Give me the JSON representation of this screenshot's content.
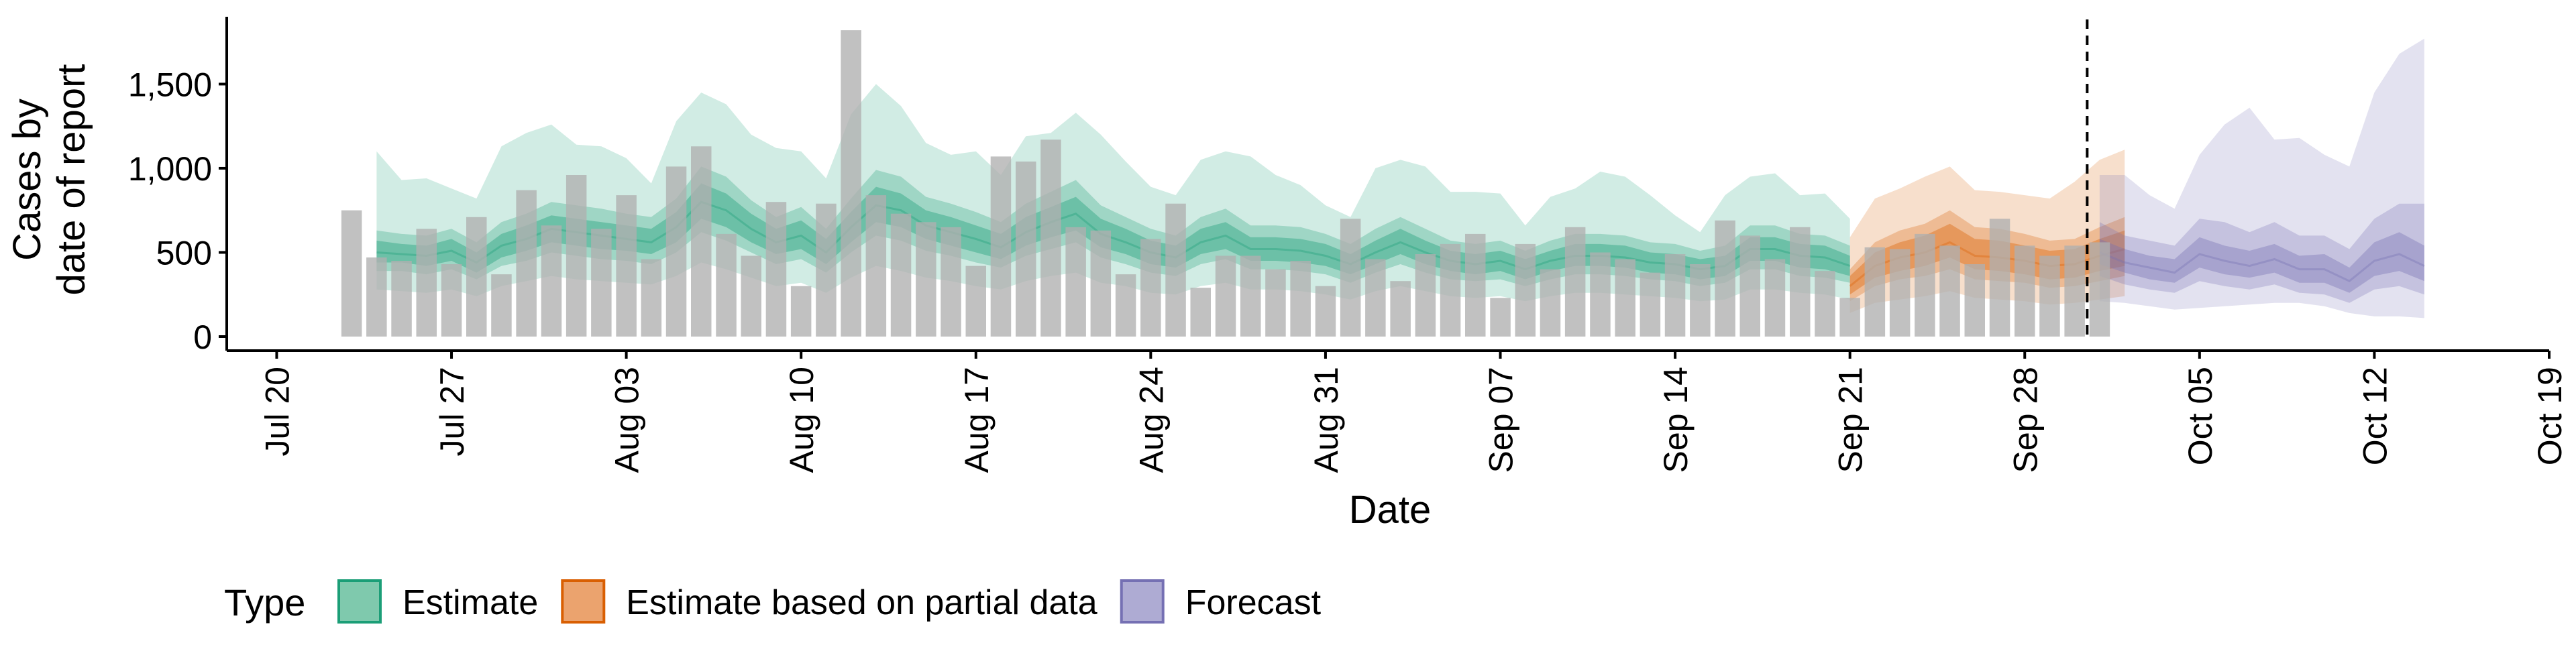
{
  "chart_data": {
    "type": "bar",
    "xlabel": "Date",
    "ylabel": [
      "Cases by",
      "date of report"
    ],
    "ylim": [
      0,
      1900
    ],
    "y_ticks": [
      0,
      500,
      1000,
      1500
    ],
    "y_tick_labels": [
      "0",
      "500",
      "1,000",
      "1,500"
    ],
    "x_range": [
      "2020-07-18",
      "2020-10-19"
    ],
    "x_ticks": [
      "2020-07-20",
      "2020-07-27",
      "2020-08-03",
      "2020-08-10",
      "2020-08-17",
      "2020-08-24",
      "2020-08-31",
      "2020-09-07",
      "2020-09-14",
      "2020-09-21",
      "2020-09-28",
      "2020-10-05",
      "2020-10-12",
      "2020-10-19"
    ],
    "x_tick_labels": [
      "Jul 20",
      "Jul 27",
      "Aug 03",
      "Aug 10",
      "Aug 17",
      "Aug 24",
      "Aug 31",
      "Sep 07",
      "Sep 14",
      "Sep 21",
      "Sep 28",
      "Oct 05",
      "Oct 12",
      "Oct 19"
    ],
    "grid": false,
    "legend": {
      "title": "Type",
      "position": "bottom",
      "entries": [
        {
          "label": "Estimate",
          "fill": "#7fc9ad",
          "stroke": "#1b9e77"
        },
        {
          "label": "Estimate based on partial data",
          "fill": "#eba36e",
          "stroke": "#d95f02"
        },
        {
          "label": "Forecast",
          "fill": "#aeabd3",
          "stroke": "#7570b3"
        }
      ]
    },
    "reported_cases": {
      "color": "#b0b0b0",
      "start_date": "2020-07-23",
      "values": [
        750,
        470,
        450,
        640,
        430,
        710,
        370,
        870,
        660,
        960,
        640,
        840,
        460,
        1010,
        1130,
        610,
        480,
        800,
        300,
        790,
        1820,
        840,
        730,
        680,
        650,
        420,
        1070,
        1040,
        1170,
        650,
        630,
        370,
        580,
        790,
        290,
        480,
        480,
        400,
        450,
        300,
        700,
        460,
        330,
        490,
        550,
        610,
        230,
        550,
        400,
        650,
        500,
        460,
        380,
        490,
        430,
        690,
        600,
        460,
        650,
        390,
        230,
        530,
        520,
        610,
        540,
        430,
        700,
        540,
        480,
        540,
        560
      ]
    },
    "forecast_date": "2020-09-30",
    "series": [
      {
        "name": "Estimate",
        "start_date": "2020-07-24",
        "median": [
          500,
          490,
          480,
          510,
          440,
          540,
          580,
          640,
          620,
          600,
          580,
          560,
          650,
          800,
          750,
          640,
          560,
          600,
          500,
          650,
          780,
          750,
          660,
          620,
          580,
          530,
          620,
          680,
          730,
          610,
          560,
          500,
          470,
          560,
          600,
          520,
          520,
          510,
          480,
          430,
          500,
          560,
          500,
          450,
          430,
          450,
          400,
          450,
          480,
          480,
          470,
          440,
          430,
          400,
          420,
          520,
          520,
          480,
          470,
          420
        ],
        "inner": [
          [
            440,
            570
          ],
          [
            440,
            550
          ],
          [
            420,
            540
          ],
          [
            450,
            580
          ],
          [
            380,
            500
          ],
          [
            470,
            610
          ],
          [
            510,
            660
          ],
          [
            560,
            720
          ],
          [
            540,
            700
          ],
          [
            520,
            680
          ],
          [
            510,
            660
          ],
          [
            490,
            640
          ],
          [
            560,
            740
          ],
          [
            700,
            910
          ],
          [
            650,
            850
          ],
          [
            560,
            730
          ],
          [
            490,
            640
          ],
          [
            520,
            690
          ],
          [
            430,
            580
          ],
          [
            560,
            740
          ],
          [
            680,
            890
          ],
          [
            650,
            850
          ],
          [
            580,
            750
          ],
          [
            540,
            710
          ],
          [
            500,
            660
          ],
          [
            460,
            610
          ],
          [
            540,
            710
          ],
          [
            590,
            770
          ],
          [
            630,
            830
          ],
          [
            530,
            700
          ],
          [
            490,
            640
          ],
          [
            430,
            570
          ],
          [
            410,
            540
          ],
          [
            490,
            640
          ],
          [
            520,
            680
          ],
          [
            450,
            590
          ],
          [
            450,
            590
          ],
          [
            440,
            580
          ],
          [
            420,
            550
          ],
          [
            370,
            490
          ],
          [
            430,
            570
          ],
          [
            490,
            640
          ],
          [
            430,
            570
          ],
          [
            390,
            510
          ],
          [
            370,
            490
          ],
          [
            390,
            510
          ],
          [
            340,
            460
          ],
          [
            390,
            510
          ],
          [
            420,
            550
          ],
          [
            420,
            550
          ],
          [
            410,
            540
          ],
          [
            380,
            500
          ],
          [
            370,
            490
          ],
          [
            340,
            460
          ],
          [
            360,
            480
          ],
          [
            450,
            590
          ],
          [
            450,
            590
          ],
          [
            410,
            550
          ],
          [
            400,
            540
          ],
          [
            360,
            480
          ]
        ],
        "mid": [
          [
            390,
            630
          ],
          [
            390,
            610
          ],
          [
            370,
            600
          ],
          [
            400,
            640
          ],
          [
            340,
            560
          ],
          [
            420,
            680
          ],
          [
            450,
            730
          ],
          [
            500,
            800
          ],
          [
            480,
            780
          ],
          [
            460,
            760
          ],
          [
            450,
            730
          ],
          [
            430,
            710
          ],
          [
            500,
            820
          ],
          [
            620,
            1010
          ],
          [
            570,
            950
          ],
          [
            500,
            810
          ],
          [
            430,
            710
          ],
          [
            460,
            770
          ],
          [
            380,
            640
          ],
          [
            500,
            820
          ],
          [
            600,
            990
          ],
          [
            570,
            950
          ],
          [
            510,
            830
          ],
          [
            480,
            790
          ],
          [
            440,
            740
          ],
          [
            410,
            680
          ],
          [
            480,
            790
          ],
          [
            520,
            860
          ],
          [
            560,
            930
          ],
          [
            470,
            780
          ],
          [
            430,
            710
          ],
          [
            380,
            640
          ],
          [
            360,
            600
          ],
          [
            430,
            710
          ],
          [
            460,
            760
          ],
          [
            400,
            660
          ],
          [
            400,
            660
          ],
          [
            390,
            650
          ],
          [
            370,
            610
          ],
          [
            320,
            550
          ],
          [
            380,
            640
          ],
          [
            430,
            710
          ],
          [
            380,
            640
          ],
          [
            340,
            570
          ],
          [
            330,
            550
          ],
          [
            340,
            570
          ],
          [
            300,
            510
          ],
          [
            340,
            570
          ],
          [
            370,
            610
          ],
          [
            370,
            610
          ],
          [
            360,
            600
          ],
          [
            340,
            560
          ],
          [
            330,
            550
          ],
          [
            300,
            510
          ],
          [
            320,
            540
          ],
          [
            400,
            660
          ],
          [
            400,
            660
          ],
          [
            360,
            610
          ],
          [
            350,
            600
          ],
          [
            320,
            540
          ]
        ],
        "outer": [
          [
            280,
            1100
          ],
          [
            270,
            930
          ],
          [
            260,
            940
          ],
          [
            280,
            880
          ],
          [
            240,
            820
          ],
          [
            300,
            1130
          ],
          [
            330,
            1210
          ],
          [
            360,
            1260
          ],
          [
            340,
            1140
          ],
          [
            330,
            1130
          ],
          [
            320,
            1060
          ],
          [
            310,
            910
          ],
          [
            360,
            1280
          ],
          [
            440,
            1450
          ],
          [
            400,
            1380
          ],
          [
            350,
            1200
          ],
          [
            300,
            1120
          ],
          [
            320,
            1100
          ],
          [
            260,
            940
          ],
          [
            350,
            1320
          ],
          [
            420,
            1500
          ],
          [
            390,
            1370
          ],
          [
            350,
            1150
          ],
          [
            330,
            1080
          ],
          [
            300,
            1100
          ],
          [
            280,
            960
          ],
          [
            330,
            1190
          ],
          [
            360,
            1210
          ],
          [
            380,
            1330
          ],
          [
            320,
            1200
          ],
          [
            300,
            1040
          ],
          [
            260,
            890
          ],
          [
            250,
            840
          ],
          [
            300,
            1050
          ],
          [
            320,
            1100
          ],
          [
            280,
            1070
          ],
          [
            280,
            960
          ],
          [
            270,
            900
          ],
          [
            250,
            780
          ],
          [
            220,
            710
          ],
          [
            270,
            1000
          ],
          [
            300,
            1050
          ],
          [
            270,
            1010
          ],
          [
            240,
            860
          ],
          [
            230,
            860
          ],
          [
            240,
            850
          ],
          [
            210,
            660
          ],
          [
            240,
            830
          ],
          [
            260,
            880
          ],
          [
            260,
            980
          ],
          [
            250,
            950
          ],
          [
            240,
            840
          ],
          [
            230,
            720
          ],
          [
            210,
            620
          ],
          [
            220,
            840
          ],
          [
            280,
            950
          ],
          [
            280,
            970
          ],
          [
            260,
            840
          ],
          [
            250,
            850
          ],
          [
            220,
            700
          ]
        ]
      },
      {
        "name": "Estimate based on partial data",
        "start_date": "2020-09-21",
        "median": [
          300,
          420,
          470,
          500,
          560,
          480,
          470,
          450,
          420,
          430,
          480,
          520
        ],
        "inner": [
          [
            250,
            360
          ],
          [
            350,
            500
          ],
          [
            390,
            560
          ],
          [
            420,
            600
          ],
          [
            470,
            670
          ],
          [
            400,
            580
          ],
          [
            390,
            570
          ],
          [
            370,
            540
          ],
          [
            340,
            510
          ],
          [
            350,
            520
          ],
          [
            390,
            580
          ],
          [
            420,
            630
          ]
        ],
        "mid": [
          [
            210,
            400
          ],
          [
            300,
            560
          ],
          [
            340,
            630
          ],
          [
            360,
            670
          ],
          [
            400,
            750
          ],
          [
            340,
            650
          ],
          [
            330,
            640
          ],
          [
            320,
            610
          ],
          [
            290,
            570
          ],
          [
            300,
            580
          ],
          [
            330,
            650
          ],
          [
            360,
            710
          ]
        ],
        "outer": [
          [
            140,
            590
          ],
          [
            200,
            820
          ],
          [
            220,
            880
          ],
          [
            240,
            950
          ],
          [
            270,
            1010
          ],
          [
            230,
            870
          ],
          [
            220,
            860
          ],
          [
            210,
            840
          ],
          [
            190,
            820
          ],
          [
            200,
            920
          ],
          [
            220,
            1050
          ],
          [
            240,
            1110
          ]
        ]
      },
      {
        "name": "Forecast",
        "start_date": "2020-10-01",
        "median": [
          500,
          440,
          410,
          380,
          490,
          450,
          420,
          460,
          400,
          400,
          330,
          450,
          490,
          420
        ],
        "inner": [
          [
            430,
            580
          ],
          [
            380,
            520
          ],
          [
            340,
            480
          ],
          [
            320,
            460
          ],
          [
            410,
            590
          ],
          [
            370,
            540
          ],
          [
            350,
            510
          ],
          [
            380,
            550
          ],
          [
            320,
            480
          ],
          [
            320,
            490
          ],
          [
            260,
            410
          ],
          [
            360,
            560
          ],
          [
            390,
            620
          ],
          [
            330,
            540
          ]
        ],
        "mid": [
          [
            360,
            680
          ],
          [
            310,
            600
          ],
          [
            280,
            570
          ],
          [
            260,
            540
          ],
          [
            330,
            700
          ],
          [
            300,
            680
          ],
          [
            280,
            620
          ],
          [
            310,
            680
          ],
          [
            260,
            600
          ],
          [
            250,
            600
          ],
          [
            200,
            520
          ],
          [
            280,
            700
          ],
          [
            300,
            790
          ],
          [
            250,
            790
          ]
        ],
        "outer": [
          [
            210,
            960
          ],
          [
            200,
            960
          ],
          [
            180,
            840
          ],
          [
            160,
            760
          ],
          [
            170,
            1080
          ],
          [
            180,
            1260
          ],
          [
            190,
            1360
          ],
          [
            200,
            1170
          ],
          [
            200,
            1180
          ],
          [
            180,
            1080
          ],
          [
            140,
            1010
          ],
          [
            120,
            1450
          ],
          [
            120,
            1680
          ],
          [
            110,
            1770
          ]
        ]
      }
    ]
  }
}
